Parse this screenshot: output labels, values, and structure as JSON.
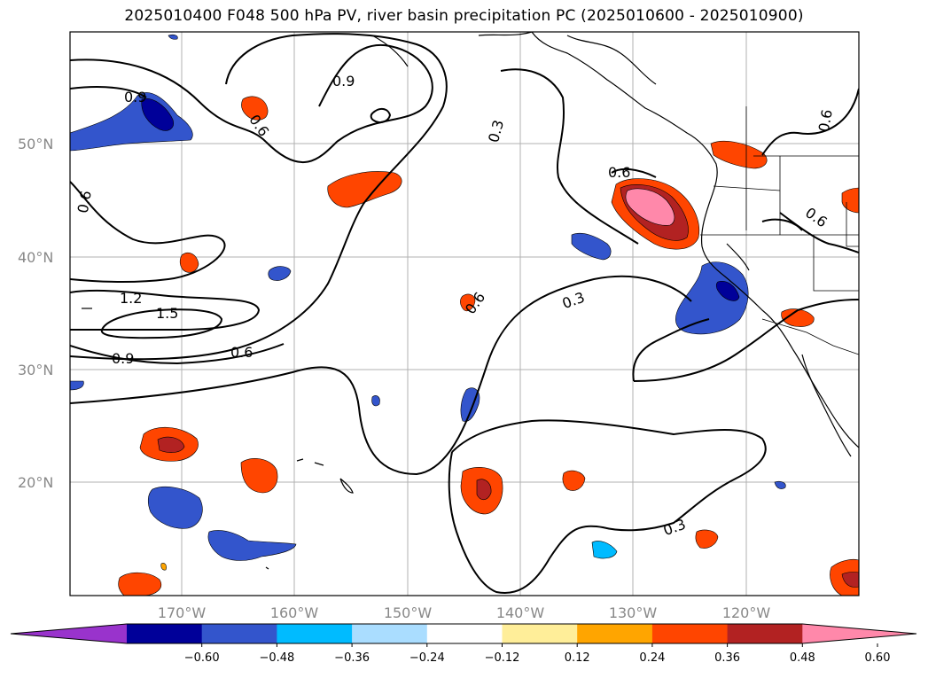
{
  "title": "2025010400 F048 500 hPa PV, river basin precipitation PC (2025010600 - 2025010900)",
  "lat_labels": [
    "50°N",
    "40°N",
    "30°N",
    "20°N"
  ],
  "lon_labels": [
    "170°W",
    "160°W",
    "150°W",
    "140°W",
    "130°W",
    "120°W"
  ],
  "contour_labels": [
    "0.9",
    "0.9",
    "0.6",
    "0.3",
    "0.6",
    "0.6",
    "0.6",
    "0.6",
    "1.2",
    "1.5",
    "0.9",
    "0.6",
    "0.6",
    "0.3",
    "0.3"
  ],
  "colorbar": {
    "ticks": [
      "−0.60",
      "−0.48",
      "−0.36",
      "−0.24",
      "−0.12",
      "0.12",
      "0.24",
      "0.36",
      "0.48",
      "0.60"
    ],
    "colors": [
      "#9933cc",
      "#000099",
      "#3355cc",
      "#00bbff",
      "#aaddff",
      "#ffffff",
      "#ffee99",
      "#ffa500",
      "#ff4500",
      "#b22222",
      "#ff88aa"
    ]
  },
  "colors": {
    "neg_dark": "#000099",
    "neg_mid": "#3355cc",
    "neg_light": "#00bbff",
    "neg_pale": "#aaddff",
    "pos_pale": "#ffee99",
    "pos_light": "#ffa500",
    "pos_mid": "#ff4500",
    "pos_dark": "#b22222",
    "pos_max": "#ff88aa"
  }
}
